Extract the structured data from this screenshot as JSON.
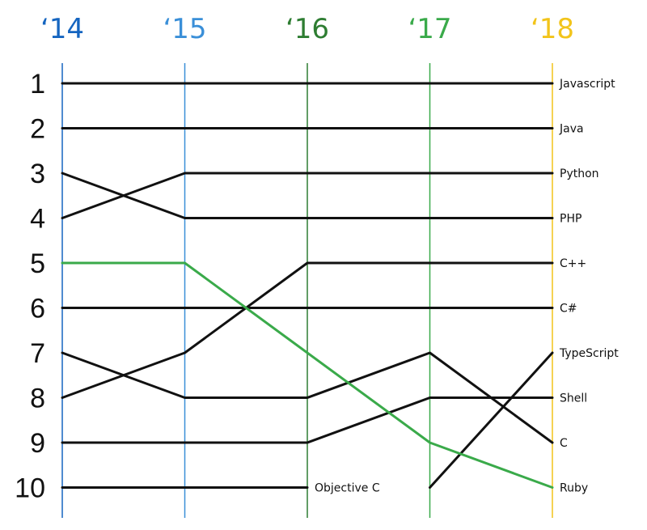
{
  "chart_data": {
    "type": "line",
    "title": "",
    "xlabel": "",
    "ylabel": "",
    "x": [
      "‘14",
      "‘15",
      "‘16",
      "‘17",
      "‘18"
    ],
    "x_colors": [
      "#1565c0",
      "#3a8fd8",
      "#2e7d32",
      "#3aaa4a",
      "#f2c41a"
    ],
    "y_ticks": [
      "1",
      "2",
      "3",
      "4",
      "5",
      "6",
      "7",
      "8",
      "9",
      "10"
    ],
    "ylim": [
      1,
      10
    ],
    "y_inverted": true,
    "grid": false,
    "highlight_color": "#3aaa4a",
    "default_color": "#111111",
    "series": [
      {
        "name": "Javascript",
        "values": [
          1,
          1,
          1,
          1,
          1
        ]
      },
      {
        "name": "Java",
        "values": [
          2,
          2,
          2,
          2,
          2
        ]
      },
      {
        "name": "Python",
        "values": [
          4,
          3,
          3,
          3,
          3
        ]
      },
      {
        "name": "PHP",
        "values": [
          3,
          4,
          4,
          4,
          4
        ]
      },
      {
        "name": "C++",
        "values": [
          8,
          7,
          5,
          5,
          5
        ]
      },
      {
        "name": "C#",
        "values": [
          6,
          6,
          6,
          6,
          6
        ]
      },
      {
        "name": "TypeScript",
        "values": [
          null,
          null,
          null,
          10,
          7
        ]
      },
      {
        "name": "Shell",
        "values": [
          9,
          9,
          9,
          8,
          8
        ]
      },
      {
        "name": "C",
        "values": [
          7,
          8,
          8,
          7,
          9
        ]
      },
      {
        "name": "Ruby",
        "values": [
          5,
          5,
          7,
          9,
          10
        ],
        "highlight": true
      },
      {
        "name": "Objective C",
        "values": [
          10,
          10,
          10,
          null,
          null
        ]
      }
    ]
  }
}
